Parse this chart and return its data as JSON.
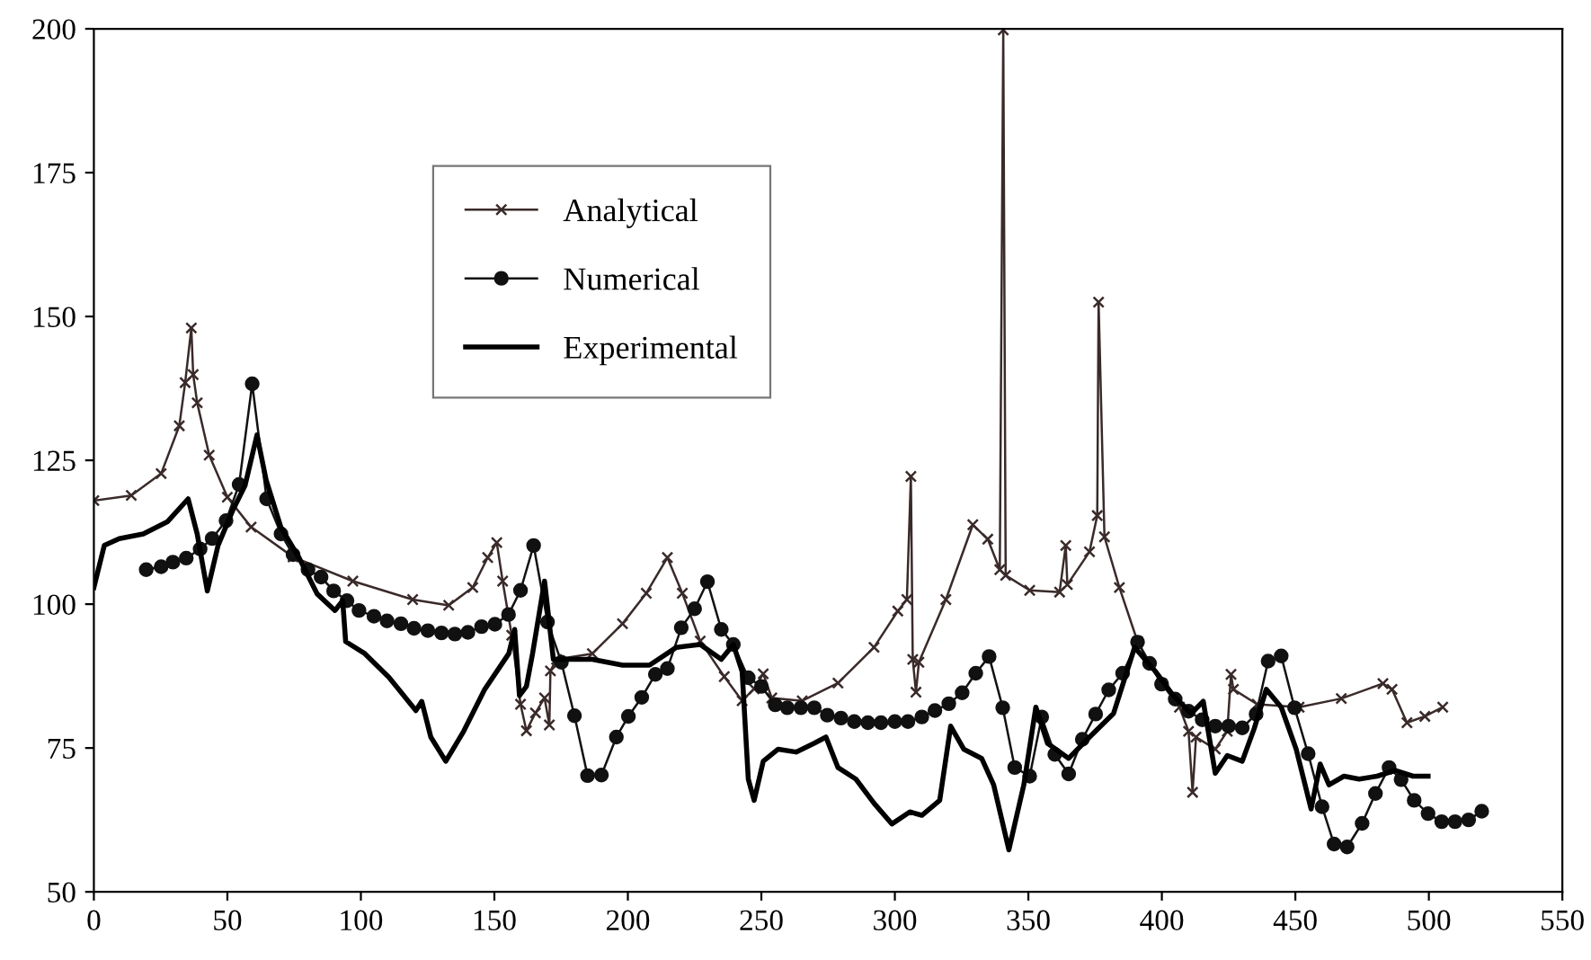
{
  "chart_data": {
    "type": "line",
    "xlim": [
      0,
      550
    ],
    "xticks": [
      0,
      50,
      100,
      150,
      200,
      250,
      300,
      350,
      400,
      450,
      500,
      550
    ],
    "ylim": [
      50,
      200
    ],
    "yticks": [
      50,
      75,
      100,
      125,
      150,
      175,
      200
    ],
    "grid": false,
    "legend": "top left",
    "series": [
      {
        "name": "Analytical",
        "color": "#3a2a2a",
        "marker": "cross",
        "x": [
          0,
          14,
          25.2,
          32,
          34.2,
          36.5,
          37.2,
          38.7,
          43.2,
          50,
          58.9,
          74.6,
          97,
          119.4,
          132.9,
          141.9,
          147.5,
          150.9,
          153.1,
          156.5,
          159.8,
          162,
          165.4,
          168.8,
          170.6,
          171,
          173.3,
          186.7,
          198,
          206.9,
          214.8,
          220.4,
          227.1,
          236.1,
          242.8,
          247.3,
          250.7,
          253.9,
          265.3,
          278.7,
          292.2,
          301.1,
          304.5,
          306,
          306.7,
          307.9,
          309,
          319.1,
          329.2,
          334.8,
          339.3,
          340.6,
          341.5,
          350.5,
          361.7,
          364,
          364.6,
          372.9,
          375.8,
          376.3,
          378.5,
          384.1,
          390.9,
          399.9,
          406.6,
          410,
          411.5,
          412.8,
          420,
          424.5,
          425.9,
          426.8,
          435.7,
          451.4,
          467.2,
          482.8,
          486.2,
          491.8,
          498.5,
          505.2
        ],
        "values": [
          118,
          118.9,
          122.7,
          131,
          138.5,
          148,
          139.9,
          135,
          125.9,
          118.6,
          113.4,
          108.2,
          104,
          100.8,
          99.8,
          102.9,
          108.1,
          110.7,
          104,
          94.6,
          82.6,
          78,
          81.1,
          83.7,
          79,
          88.4,
          90.4,
          91.4,
          96.6,
          101.9,
          108.1,
          101.9,
          93.6,
          87.4,
          83.2,
          85.3,
          87.9,
          83.7,
          83.2,
          86.3,
          92.5,
          98.8,
          100.8,
          122.2,
          90.4,
          84.7,
          89.9,
          100.8,
          113.8,
          111.3,
          106,
          199.8,
          105,
          102.4,
          102.1,
          110.2,
          103.4,
          109.1,
          115.4,
          152.5,
          111.7,
          102.9,
          93.5,
          86.2,
          82.1,
          77.9,
          67.3,
          76.9,
          74.8,
          77.9,
          87.8,
          85.2,
          82.6,
          82.1,
          83.6,
          86.2,
          85.2,
          79.4,
          80.5,
          82.1
        ]
      },
      {
        "name": "Numerical",
        "color": "#111111",
        "marker": "circle",
        "x": [
          19.6,
          25.2,
          29.6,
          34.6,
          39.8,
          44.3,
          49.5,
          54.4,
          59.3,
          64.7,
          70.1,
          74.6,
          80.2,
          85.1,
          89.8,
          94.8,
          99.3,
          104.9,
          109.8,
          115,
          119.9,
          125.1,
          130.2,
          135.2,
          140.1,
          145.2,
          150.2,
          155.3,
          159.8,
          164.7,
          169.9,
          175.1,
          180,
          184.9,
          190.1,
          195.7,
          200.2,
          205.2,
          210.3,
          214.8,
          220,
          225,
          229.8,
          235,
          239.5,
          245.1,
          250,
          255.2,
          259.7,
          264.8,
          269.8,
          274.7,
          279.8,
          284.8,
          289.9,
          294.8,
          300,
          304.9,
          310.1,
          315,
          320.2,
          325.2,
          330.3,
          335.3,
          340.4,
          344.9,
          350.5,
          355,
          359.9,
          365.1,
          370.2,
          375.2,
          380.1,
          385.3,
          390.9,
          395.4,
          399.9,
          405,
          410,
          415.1,
          420,
          425,
          430.1,
          435.3,
          439.8,
          444.7,
          449.7,
          454.8,
          460,
          464.5,
          469.4,
          475,
          480,
          485.1,
          489.6,
          494.5,
          499.7,
          504.8,
          509.8,
          514.9,
          519.8
        ],
        "values": [
          106,
          106.5,
          107.3,
          108,
          109.6,
          111.4,
          114.5,
          120.8,
          138.3,
          118.3,
          112.2,
          108.6,
          106,
          104.7,
          102.3,
          100.6,
          98.9,
          97.9,
          97.1,
          96.6,
          95.8,
          95.4,
          95,
          94.8,
          95.1,
          96.1,
          96.5,
          98.2,
          102.4,
          110.2,
          96.9,
          89.9,
          80.6,
          70.2,
          70.3,
          76.9,
          80.5,
          83.8,
          87.8,
          88.8,
          95.9,
          99.2,
          103.9,
          95.6,
          93,
          87.2,
          85.7,
          82.5,
          82,
          82,
          82,
          80.7,
          80.2,
          79.6,
          79.4,
          79.4,
          79.6,
          79.6,
          80.4,
          81.5,
          82.7,
          84.6,
          88,
          90.9,
          82,
          71.6,
          70.1,
          80.4,
          73.9,
          70.5,
          76.5,
          80.9,
          85.1,
          88,
          93.4,
          89.7,
          86.1,
          83.5,
          81.4,
          79.9,
          78.8,
          78.8,
          78.5,
          80.9,
          90.1,
          91,
          82,
          74,
          64.8,
          58.3,
          57.8,
          61.9,
          67.1,
          71.6,
          69.5,
          65.9,
          63.6,
          62.2,
          62.2,
          62.5,
          64
        ]
      },
      {
        "name": "Experimental",
        "color": "#000000",
        "marker": "none",
        "x": [
          0,
          3.9,
          9.5,
          18.5,
          27.5,
          35.3,
          38.7,
          42.5,
          46.5,
          52.1,
          56.6,
          61.1,
          64.5,
          70.1,
          76.8,
          83.6,
          90.3,
          93.2,
          94.3,
          101.5,
          110.5,
          120.6,
          122.8,
          126.2,
          131.8,
          138.5,
          146.4,
          155.4,
          157.6,
          159.4,
          162,
          164.3,
          168.8,
          172.1,
          186.7,
          198,
          208.1,
          218.2,
          227.1,
          235,
          239.5,
          242.8,
          245.1,
          247.3,
          250.7,
          256.3,
          263,
          269.7,
          274.2,
          278.7,
          285.4,
          292.2,
          298.9,
          305.6,
          310.1,
          316.8,
          320.9,
          325.8,
          332.5,
          337,
          342.7,
          348.3,
          352.8,
          357.2,
          365.1,
          372.9,
          381.9,
          389.8,
          397.6,
          404.3,
          411,
          415.5,
          420,
          424.5,
          430.1,
          434.6,
          439.1,
          444.7,
          450.3,
          455.9,
          459.3,
          462.6,
          468.2,
          473.9,
          480.6,
          487.4,
          494.1,
          499.7
        ],
        "values": [
          102.9,
          110.2,
          111.4,
          112.2,
          114.3,
          118.3,
          112.2,
          102.3,
          110.2,
          116.4,
          120.6,
          129.4,
          121.6,
          113.3,
          108.1,
          101.8,
          98.9,
          100.6,
          93.5,
          91.4,
          87.3,
          81.5,
          83.1,
          76.9,
          72.7,
          77.9,
          85.2,
          91.4,
          95.6,
          84.1,
          85.7,
          91.4,
          104,
          90.4,
          90.4,
          89.4,
          89.4,
          92.5,
          93,
          90.4,
          93,
          88.3,
          69.6,
          65.9,
          72.7,
          74.8,
          74.3,
          75.8,
          76.9,
          71.6,
          69.6,
          65.4,
          61.8,
          63.9,
          63.3,
          65.9,
          78.8,
          74.8,
          73.2,
          68.6,
          57.3,
          68.6,
          82.1,
          75.8,
          73.2,
          76.9,
          81,
          92.5,
          88.3,
          84.1,
          81,
          83.1,
          70.6,
          73.7,
          72.7,
          78.4,
          85.2,
          82.1,
          74.8,
          64.4,
          72.2,
          68.6,
          70.1,
          69.6,
          70.1,
          71.1,
          70.1,
          70.1
        ]
      }
    ]
  }
}
